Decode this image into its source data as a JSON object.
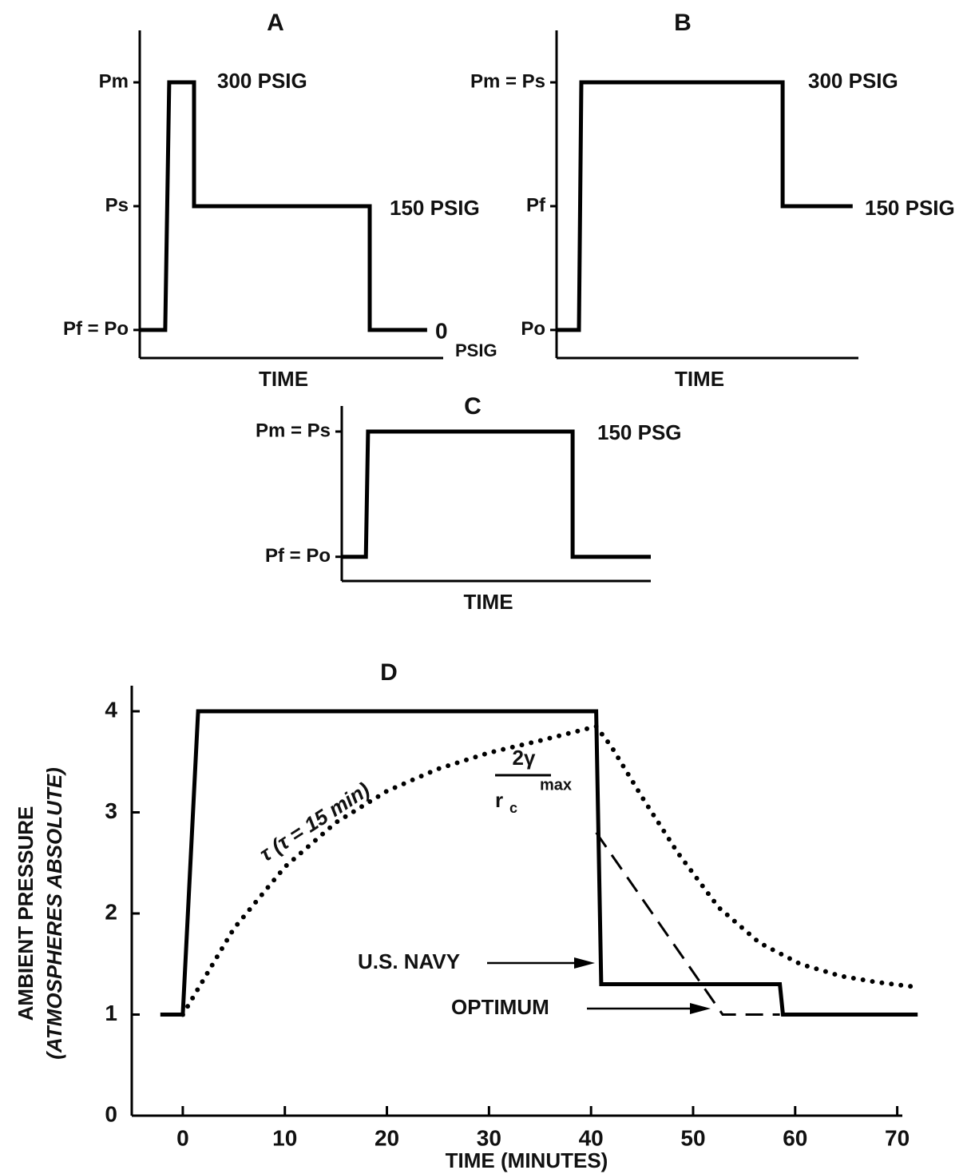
{
  "chart_data": [
    {
      "type": "line",
      "title": "A",
      "xlabel": "TIME",
      "xlim": [
        0,
        100
      ],
      "ylim": [
        -34,
        332
      ],
      "yticks": [
        {
          "value": 300,
          "label": "Pm"
        },
        {
          "value": 150,
          "label": "Ps"
        },
        {
          "value": 0,
          "label": "Pf = Po"
        }
      ],
      "series": [
        {
          "color": "#000000",
          "style": "solid",
          "x": [
            0,
            8.4,
            9.7,
            17.9,
            17.9,
            75.8,
            75.8,
            94.7
          ],
          "values": [
            0,
            0,
            300,
            300,
            150,
            150,
            0,
            0
          ]
        }
      ],
      "annotations": [
        "300 PSIG",
        "150 PSIG",
        "0",
        "PSIG"
      ]
    },
    {
      "type": "line",
      "title": "B",
      "xlabel": "TIME",
      "xlim": [
        0,
        100
      ],
      "ylim": [
        -34,
        332
      ],
      "yticks": [
        {
          "value": 300,
          "label": "Pm = Ps"
        },
        {
          "value": 150,
          "label": "Pf"
        },
        {
          "value": 0,
          "label": "Po"
        }
      ],
      "series": [
        {
          "color": "#000000",
          "style": "solid",
          "x": [
            0,
            7.4,
            8.2,
            74.9,
            74.9,
            98.1
          ],
          "values": [
            0,
            0,
            300,
            300,
            150,
            150
          ]
        }
      ],
      "annotations": [
        "300 PSIG",
        "150 PSIG"
      ]
    },
    {
      "type": "line",
      "title": "C",
      "xlabel": "TIME",
      "xlim": [
        0,
        100
      ],
      "ylim": [
        -29,
        150
      ],
      "yticks": [
        {
          "value": 150,
          "label": "Pm = Ps"
        },
        {
          "value": 0,
          "label": "Pf = Po"
        }
      ],
      "series": [
        {
          "color": "#000000",
          "style": "solid",
          "x": [
            0,
            7.8,
            8.5,
            74.7,
            74.7,
            100
          ],
          "values": [
            0,
            0,
            150,
            150,
            0,
            0
          ]
        }
      ],
      "annotations": [
        "150 PSG"
      ]
    },
    {
      "type": "line",
      "title": "D",
      "xlabel": "TIME  (MINUTES)",
      "ylabel": "AMBIENT PRESSURE",
      "ylabel2": "(ATMOSPHERES ABSOLUTE)",
      "xlim": [
        -5,
        70.5
      ],
      "ylim": [
        0,
        4
      ],
      "xticks": [
        0,
        10,
        20,
        30,
        40,
        50,
        60,
        70
      ],
      "yticks": [
        0,
        1,
        2,
        3,
        4
      ],
      "series": [
        {
          "name": "U.S. NAVY",
          "color": "#000000",
          "style": "solid",
          "x": [
            -2.2,
            0,
            1.5,
            40.5,
            41,
            58.5,
            58.8,
            72
          ],
          "values": [
            1,
            1,
            4,
            4,
            1.3,
            1.3,
            1,
            1
          ]
        },
        {
          "name": "OPTIMUM",
          "color": "#000000",
          "style": "dashed",
          "x": [
            40.5,
            52.9,
            58.5
          ],
          "values": [
            2.8,
            1,
            1
          ]
        },
        {
          "name": "τ (τ = 15 min)",
          "color": "#000000",
          "style": "dotted",
          "x": [
            0,
            5,
            10,
            15,
            20,
            25,
            30,
            35,
            40.5,
            42,
            45,
            48.5,
            52.5,
            56.5,
            60.5,
            64.5,
            68,
            72
          ],
          "values": [
            1,
            1.85,
            2.46,
            2.9,
            3.21,
            3.43,
            3.59,
            3.71,
            3.85,
            3.65,
            3.15,
            2.6,
            2.06,
            1.71,
            1.5,
            1.38,
            1.32,
            1.27
          ]
        }
      ],
      "annotations": [
        "2γ",
        "r",
        "c",
        "max"
      ]
    }
  ]
}
